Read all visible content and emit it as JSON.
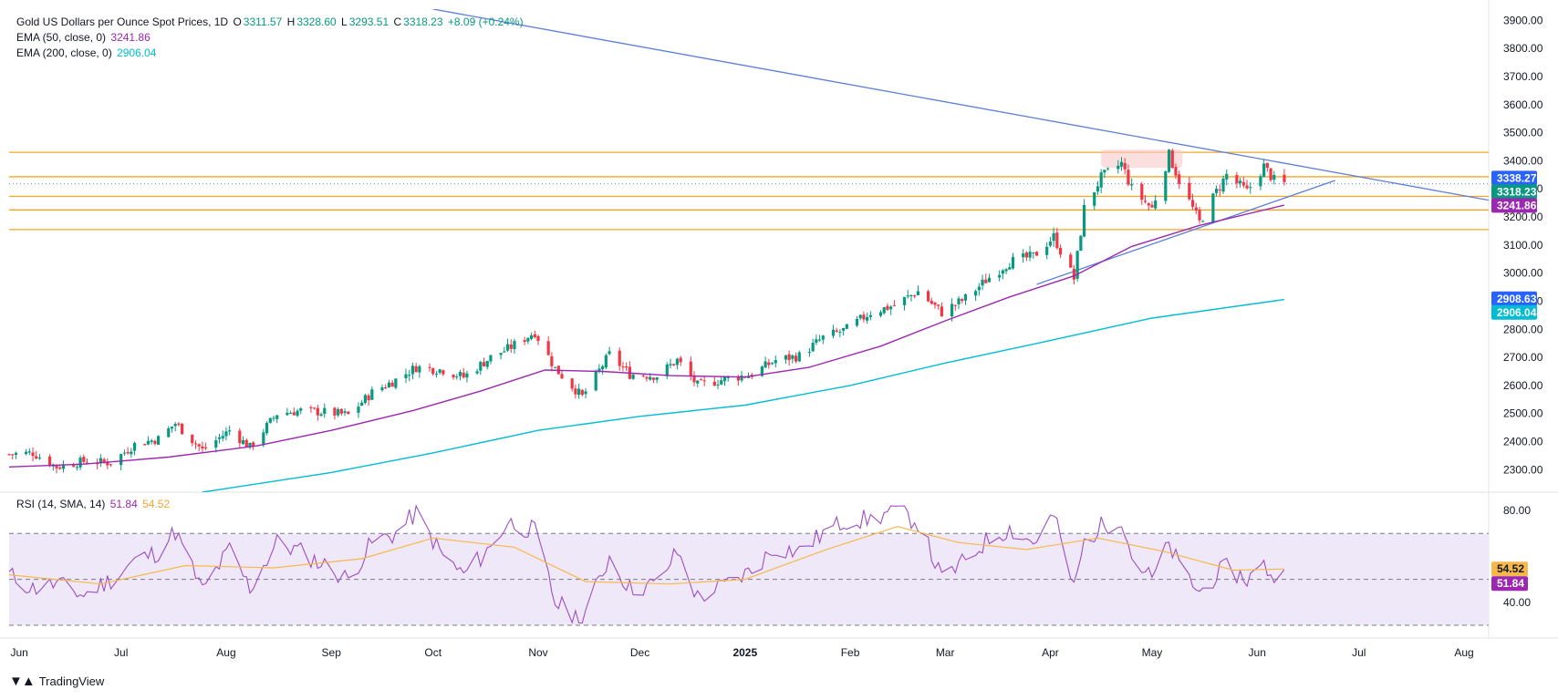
{
  "header": {
    "symbol": "Gold US Dollars per Ounce Spot Prices, 1D",
    "open_label": "O",
    "open": "3311.57",
    "high_label": "H",
    "high": "3328.60",
    "low_label": "L",
    "low": "3293.51",
    "close_label": "C",
    "close": "3318.23",
    "change": "+8.09 (+0.24%)",
    "ema50_label": "EMA (50, close, 0)",
    "ema50_value": "3241.86",
    "ema200_label": "EMA (200, close, 0)",
    "ema200_value": "2906.04",
    "rsi_label": "RSI (14, SMA, 14)",
    "rsi_value": "51.84",
    "rsi_sma_value": "54.52"
  },
  "branding": {
    "logo_text": "TradingView"
  },
  "colors": {
    "up": "#089981",
    "down": "#f23645",
    "ema50": "#9c27b0",
    "ema200": "#00bcd4",
    "trendline": "#5b7fd6",
    "horizontal": "#f5a623",
    "rsi": "#9c4fc2",
    "rsi_sma": "#f7b84b",
    "rsi_band": "#efe8f8",
    "price_badge_blue": "#2962ff",
    "price_badge_green": "#089981"
  },
  "chart_data": {
    "type": "candlestick",
    "ylim": [
      2220,
      3940
    ],
    "y_ticks": [
      "3900.00",
      "3800.00",
      "3700.00",
      "3600.00",
      "3500.00",
      "3400.00",
      "3300.00",
      "3200.00",
      "3100.00",
      "3000.00",
      "2900.00",
      "2800.00",
      "2700.00",
      "2600.00",
      "2500.00",
      "2400.00",
      "2300.00"
    ],
    "x_ticks": [
      {
        "label": "Jun",
        "date": "2024-06-01"
      },
      {
        "label": "Jul",
        "date": "2024-07-01"
      },
      {
        "label": "Aug",
        "date": "2024-08-01"
      },
      {
        "label": "Sep",
        "date": "2024-09-01"
      },
      {
        "label": "Oct",
        "date": "2024-10-01"
      },
      {
        "label": "Nov",
        "date": "2024-11-01"
      },
      {
        "label": "Dec",
        "date": "2024-12-01"
      },
      {
        "label": "2025",
        "date": "2025-01-01",
        "bold": true
      },
      {
        "label": "Feb",
        "date": "2025-02-01"
      },
      {
        "label": "Mar",
        "date": "2025-03-01"
      },
      {
        "label": "Apr",
        "date": "2025-04-01"
      },
      {
        "label": "May",
        "date": "2025-05-01"
      },
      {
        "label": "Jun",
        "date": "2025-06-01"
      },
      {
        "label": "Jul",
        "date": "2025-07-01"
      },
      {
        "label": "Aug",
        "date": "2025-08-01"
      }
    ],
    "close_path": [
      [
        "2024-05-29",
        2355
      ],
      [
        "2024-06-05",
        2360
      ],
      [
        "2024-06-12",
        2310
      ],
      [
        "2024-06-20",
        2330
      ],
      [
        "2024-06-28",
        2325
      ],
      [
        "2024-07-05",
        2390
      ],
      [
        "2024-07-12",
        2410
      ],
      [
        "2024-07-17",
        2465
      ],
      [
        "2024-07-25",
        2370
      ],
      [
        "2024-08-02",
        2440
      ],
      [
        "2024-08-08",
        2380
      ],
      [
        "2024-08-16",
        2500
      ],
      [
        "2024-08-23",
        2510
      ],
      [
        "2024-08-30",
        2505
      ],
      [
        "2024-09-06",
        2495
      ],
      [
        "2024-09-13",
        2575
      ],
      [
        "2024-09-20",
        2620
      ],
      [
        "2024-09-26",
        2665
      ],
      [
        "2024-10-04",
        2655
      ],
      [
        "2024-10-10",
        2630
      ],
      [
        "2024-10-18",
        2700
      ],
      [
        "2024-10-23",
        2730
      ],
      [
        "2024-10-31",
        2790
      ],
      [
        "2024-11-06",
        2660
      ],
      [
        "2024-11-14",
        2560
      ],
      [
        "2024-11-22",
        2710
      ],
      [
        "2024-11-28",
        2640
      ],
      [
        "2024-12-06",
        2635
      ],
      [
        "2024-12-12",
        2690
      ],
      [
        "2024-12-18",
        2600
      ],
      [
        "2024-12-27",
        2625
      ],
      [
        "2025-01-03",
        2640
      ],
      [
        "2025-01-10",
        2690
      ],
      [
        "2025-01-17",
        2705
      ],
      [
        "2025-01-24",
        2770
      ],
      [
        "2025-01-31",
        2800
      ],
      [
        "2025-02-07",
        2860
      ],
      [
        "2025-02-14",
        2885
      ],
      [
        "2025-02-21",
        2935
      ],
      [
        "2025-02-28",
        2860
      ],
      [
        "2025-03-07",
        2910
      ],
      [
        "2025-03-14",
        2985
      ],
      [
        "2025-03-20",
        3040
      ],
      [
        "2025-03-27",
        3060
      ],
      [
        "2025-04-02",
        3130
      ],
      [
        "2025-04-08",
        2980
      ],
      [
        "2025-04-11",
        3230
      ],
      [
        "2025-04-16",
        3340
      ],
      [
        "2025-04-22",
        3390
      ],
      [
        "2025-04-25",
        3300
      ],
      [
        "2025-05-01",
        3230
      ],
      [
        "2025-05-06",
        3420
      ],
      [
        "2025-05-09",
        3330
      ],
      [
        "2025-05-15",
        3180
      ],
      [
        "2025-05-20",
        3290
      ],
      [
        "2025-05-23",
        3350
      ],
      [
        "2025-05-29",
        3290
      ],
      [
        "2025-06-03",
        3380
      ],
      [
        "2025-06-06",
        3330
      ],
      [
        "2025-06-09",
        3318
      ]
    ],
    "ema50_path": [
      [
        "2024-05-29",
        2310
      ],
      [
        "2024-06-20",
        2320
      ],
      [
        "2024-07-15",
        2345
      ],
      [
        "2024-08-10",
        2385
      ],
      [
        "2024-09-01",
        2440
      ],
      [
        "2024-09-25",
        2510
      ],
      [
        "2024-10-15",
        2580
      ],
      [
        "2024-11-03",
        2655
      ],
      [
        "2024-11-20",
        2650
      ],
      [
        "2024-12-10",
        2635
      ],
      [
        "2025-01-01",
        2630
      ],
      [
        "2025-01-20",
        2665
      ],
      [
        "2025-02-10",
        2740
      ],
      [
        "2025-03-01",
        2830
      ],
      [
        "2025-03-20",
        2915
      ],
      [
        "2025-04-08",
        2990
      ],
      [
        "2025-04-25",
        3095
      ],
      [
        "2025-05-15",
        3170
      ],
      [
        "2025-06-09",
        3241.86
      ]
    ],
    "ema200_path": [
      [
        "2024-07-25",
        2220
      ],
      [
        "2024-09-01",
        2290
      ],
      [
        "2024-10-01",
        2360
      ],
      [
        "2024-11-01",
        2440
      ],
      [
        "2024-12-01",
        2490
      ],
      [
        "2025-01-01",
        2530
      ],
      [
        "2025-02-01",
        2600
      ],
      [
        "2025-03-01",
        2680
      ],
      [
        "2025-04-01",
        2760
      ],
      [
        "2025-05-01",
        2840
      ],
      [
        "2025-06-09",
        2906.04
      ]
    ],
    "trend_upper": [
      [
        "2024-10-01",
        3940
      ],
      [
        "2025-08-31",
        3210
      ]
    ],
    "trend_lower": [
      [
        "2025-03-28",
        2960
      ],
      [
        "2025-06-24",
        3330
      ]
    ],
    "horizontal_levels": [
      3430,
      3343,
      3273,
      3225,
      3155
    ],
    "current_price_dotted": 3318.23,
    "resistance_zone": {
      "from": "2025-04-16",
      "to": "2025-05-10",
      "low": 3375,
      "high": 3440
    },
    "price_badges": [
      {
        "value": "3338.27",
        "color": "blue",
        "price": 3338.27
      },
      {
        "value": "3318.23",
        "color": "green",
        "price": 3318.23
      },
      {
        "value": "3241.86",
        "color": "purple",
        "price": 3241.86
      },
      {
        "value": "2908.63",
        "color": "blue",
        "price": 2908.63
      },
      {
        "value": "2906.04",
        "color": "cyan",
        "price": 2906.04
      }
    ],
    "rsi": {
      "ylim": [
        30,
        84
      ],
      "y_ticks": [
        "80.00",
        "40.00"
      ],
      "band": [
        30,
        70
      ],
      "path": [
        [
          "2024-05-29",
          52
        ],
        [
          "2024-06-05",
          46
        ],
        [
          "2024-06-12",
          48
        ],
        [
          "2024-06-20",
          43
        ],
        [
          "2024-06-28",
          50
        ],
        [
          "2024-07-05",
          58
        ],
        [
          "2024-07-12",
          62
        ],
        [
          "2024-07-17",
          71
        ],
        [
          "2024-07-25",
          45
        ],
        [
          "2024-08-02",
          63
        ],
        [
          "2024-08-08",
          46
        ],
        [
          "2024-08-16",
          66
        ],
        [
          "2024-08-23",
          62
        ],
        [
          "2024-08-30",
          56
        ],
        [
          "2024-09-06",
          50
        ],
        [
          "2024-09-13",
          66
        ],
        [
          "2024-09-20",
          70
        ],
        [
          "2024-09-26",
          79
        ],
        [
          "2024-10-04",
          60
        ],
        [
          "2024-10-10",
          52
        ],
        [
          "2024-10-18",
          64
        ],
        [
          "2024-10-23",
          75
        ],
        [
          "2024-10-31",
          71
        ],
        [
          "2024-11-06",
          40
        ],
        [
          "2024-11-14",
          32
        ],
        [
          "2024-11-22",
          60
        ],
        [
          "2024-11-28",
          46
        ],
        [
          "2024-12-06",
          48
        ],
        [
          "2024-12-12",
          62
        ],
        [
          "2024-12-18",
          42
        ],
        [
          "2024-12-27",
          48
        ],
        [
          "2025-01-03",
          54
        ],
        [
          "2025-01-10",
          64
        ],
        [
          "2025-01-17",
          62
        ],
        [
          "2025-01-24",
          70
        ],
        [
          "2025-01-31",
          76
        ],
        [
          "2025-02-07",
          76
        ],
        [
          "2025-02-14",
          80
        ],
        [
          "2025-02-21",
          75
        ],
        [
          "2025-02-28",
          50
        ],
        [
          "2025-03-07",
          58
        ],
        [
          "2025-03-14",
          68
        ],
        [
          "2025-03-20",
          72
        ],
        [
          "2025-03-27",
          66
        ],
        [
          "2025-04-02",
          78
        ],
        [
          "2025-04-08",
          46
        ],
        [
          "2025-04-11",
          66
        ],
        [
          "2025-04-16",
          73
        ],
        [
          "2025-04-22",
          77
        ],
        [
          "2025-04-25",
          60
        ],
        [
          "2025-05-01",
          50
        ],
        [
          "2025-05-06",
          65
        ],
        [
          "2025-05-09",
          56
        ],
        [
          "2025-05-15",
          44
        ],
        [
          "2025-05-20",
          52
        ],
        [
          "2025-05-23",
          55
        ],
        [
          "2025-05-29",
          50
        ],
        [
          "2025-06-03",
          56
        ],
        [
          "2025-06-06",
          51
        ],
        [
          "2025-06-09",
          51.84
        ]
      ],
      "sma_path": [
        [
          "2024-05-29",
          52
        ],
        [
          "2024-06-25",
          48
        ],
        [
          "2024-07-20",
          56
        ],
        [
          "2024-08-15",
          55
        ],
        [
          "2024-09-10",
          59
        ],
        [
          "2024-10-01",
          68
        ],
        [
          "2024-10-25",
          64
        ],
        [
          "2024-11-15",
          49
        ],
        [
          "2024-12-10",
          48
        ],
        [
          "2025-01-01",
          50
        ],
        [
          "2025-01-25",
          63
        ],
        [
          "2025-02-15",
          73
        ],
        [
          "2025-03-05",
          66
        ],
        [
          "2025-03-25",
          63
        ],
        [
          "2025-04-15",
          68
        ],
        [
          "2025-05-05",
          62
        ],
        [
          "2025-05-25",
          54
        ],
        [
          "2025-06-09",
          54.52
        ]
      ]
    }
  }
}
